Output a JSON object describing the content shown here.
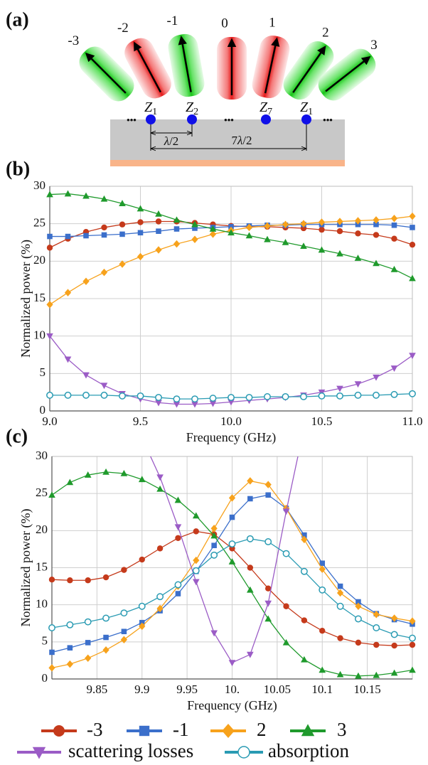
{
  "panel_labels": [
    "(a)",
    "(b)",
    "(c)"
  ],
  "diagram": {
    "beam_labels": [
      "-3",
      "-2",
      "-1",
      "0",
      "1",
      "2",
      "3"
    ],
    "element_labels": [
      {
        "symbol": "Z",
        "index": "1"
      },
      {
        "symbol": "Z",
        "index": "2"
      },
      {
        "symbol": "Z",
        "index": "7"
      },
      {
        "symbol": "Z",
        "index": "1"
      }
    ],
    "ellipsis": "•••",
    "spacing_labels": [
      {
        "prefix": "",
        "symbol": "λ",
        "text": "/2"
      },
      {
        "prefix": "7",
        "symbol": "λ",
        "text": "/2"
      }
    ]
  },
  "chart_data": [
    {
      "type": "line",
      "x_label": "Frequency (GHz)",
      "y_label": "Normalized power (%)",
      "x": [
        9.0,
        9.1,
        9.2,
        9.3,
        9.4,
        9.5,
        9.6,
        9.7,
        9.8,
        9.9,
        10.0,
        10.1,
        10.2,
        10.3,
        10.4,
        10.5,
        10.6,
        10.7,
        10.8,
        10.9,
        11.0
      ],
      "xlim": [
        9.0,
        11.0
      ],
      "xticks": [
        {
          "value": 9.0,
          "label": "9.0"
        },
        {
          "value": 9.5,
          "label": "9.5"
        },
        {
          "value": 10.0,
          "label": "10.0"
        },
        {
          "value": 10.5,
          "label": "10.5"
        },
        {
          "value": 11.0,
          "label": "11.0"
        }
      ],
      "ylim": [
        0,
        30
      ],
      "yticks": [
        0,
        5,
        10,
        15,
        20,
        25,
        30
      ],
      "grid": true,
      "series": [
        {
          "color": "#c53a1b",
          "marker": "circle",
          "values": [
            21.8,
            23.0,
            23.9,
            24.5,
            24.9,
            25.2,
            25.3,
            25.3,
            25.1,
            24.9,
            24.7,
            24.6,
            24.6,
            24.5,
            24.4,
            24.2,
            24.0,
            23.7,
            23.5,
            23.0,
            22.2
          ]
        },
        {
          "color": "#3b6fcb",
          "marker": "square",
          "values": [
            23.3,
            23.3,
            23.4,
            23.5,
            23.6,
            23.8,
            24.0,
            24.3,
            24.4,
            24.5,
            24.6,
            24.7,
            24.8,
            24.8,
            24.9,
            24.9,
            24.9,
            24.9,
            24.9,
            24.8,
            24.5
          ]
        },
        {
          "color": "#f7a21c",
          "marker": "diamond",
          "values": [
            14.2,
            15.8,
            17.3,
            18.5,
            19.6,
            20.6,
            21.5,
            22.3,
            22.9,
            23.6,
            24.1,
            24.5,
            24.7,
            24.9,
            25.0,
            25.2,
            25.3,
            25.4,
            25.5,
            25.7,
            26.0
          ]
        },
        {
          "color": "#1f9a2c",
          "marker": "triangle-up",
          "values": [
            28.9,
            29.0,
            28.7,
            28.3,
            27.7,
            27.0,
            26.3,
            25.5,
            24.9,
            24.3,
            23.8,
            23.4,
            22.9,
            22.5,
            22.0,
            21.5,
            21.0,
            20.4,
            19.7,
            18.9,
            17.7
          ]
        },
        {
          "color": "#9b5cc6",
          "marker": "triangle-down",
          "values": [
            10.0,
            6.9,
            4.8,
            3.4,
            2.3,
            1.6,
            1.1,
            0.9,
            0.9,
            1.0,
            1.2,
            1.4,
            1.6,
            1.8,
            2.1,
            2.5,
            3.0,
            3.6,
            4.5,
            5.7,
            7.4
          ]
        },
        {
          "color": "#2a9bb3",
          "marker": "circle-open",
          "values": [
            2.1,
            2.1,
            2.1,
            2.1,
            2.0,
            2.0,
            1.8,
            1.6,
            1.6,
            1.7,
            1.8,
            1.8,
            1.9,
            1.9,
            1.9,
            2.0,
            2.0,
            2.1,
            2.1,
            2.2,
            2.3
          ]
        }
      ]
    },
    {
      "type": "line",
      "x_label": "Frequency (GHz)",
      "y_label": "Normalized power (%)",
      "x": [
        9.8,
        9.82,
        9.84,
        9.86,
        9.88,
        9.9,
        9.92,
        9.94,
        9.96,
        9.98,
        10.0,
        10.02,
        10.04,
        10.06,
        10.08,
        10.1,
        10.12,
        10.14,
        10.16,
        10.18,
        10.2
      ],
      "xlim": [
        9.8,
        10.2
      ],
      "xticks": [
        9.85,
        9.9,
        9.95,
        {
          "value": 10,
          "label": "10."
        },
        10.05,
        10.1,
        10.15
      ],
      "ylim": [
        0,
        30
      ],
      "yticks": [
        0,
        5,
        10,
        15,
        20,
        25,
        30
      ],
      "grid": true,
      "legend": "bottom",
      "series": [
        {
          "name": "-3",
          "color": "#c53a1b",
          "marker": "circle",
          "values": [
            13.4,
            13.3,
            13.3,
            13.7,
            14.7,
            16.1,
            17.6,
            19.0,
            19.9,
            19.5,
            17.6,
            15.0,
            12.2,
            9.8,
            7.9,
            6.5,
            5.5,
            4.9,
            4.6,
            4.5,
            4.6
          ]
        },
        {
          "name": "-1",
          "color": "#3b6fcb",
          "marker": "square",
          "values": [
            3.6,
            4.2,
            4.9,
            5.6,
            6.4,
            7.6,
            9.2,
            11.5,
            14.5,
            18.0,
            21.8,
            24.3,
            24.8,
            23.0,
            19.4,
            15.6,
            12.5,
            10.4,
            8.8,
            8.0,
            7.4
          ]
        },
        {
          "name": "2",
          "color": "#f7a21c",
          "marker": "diamond",
          "values": [
            1.5,
            2.0,
            2.8,
            3.9,
            5.3,
            7.1,
            9.5,
            12.5,
            16.0,
            20.3,
            24.4,
            26.7,
            26.2,
            23.0,
            18.8,
            14.8,
            11.6,
            9.8,
            8.7,
            8.2,
            7.8
          ]
        },
        {
          "name": "3",
          "color": "#1f9a2c",
          "marker": "triangle-up",
          "values": [
            24.8,
            26.5,
            27.5,
            27.9,
            27.7,
            26.9,
            25.6,
            24.1,
            22.0,
            19.3,
            15.8,
            12.0,
            8.1,
            4.9,
            2.6,
            1.2,
            0.6,
            0.4,
            0.5,
            0.8,
            1.2
          ]
        },
        {
          "name": "scattering losses",
          "color": "#9b5cc6",
          "marker": "triangle-down",
          "values": [
            null,
            null,
            null,
            null,
            null,
            32.5,
            27.2,
            20.5,
            13.1,
            6.2,
            2.2,
            3.3,
            10.2,
            22.6,
            34.0,
            null,
            null,
            null,
            null,
            null,
            null
          ]
        },
        {
          "name": "absorption",
          "color": "#2a9bb3",
          "marker": "circle-open",
          "values": [
            6.9,
            7.3,
            7.7,
            8.2,
            8.9,
            9.8,
            11.1,
            12.7,
            14.6,
            16.7,
            18.2,
            18.9,
            18.5,
            16.9,
            14.5,
            12.0,
            9.8,
            8.1,
            6.9,
            6.0,
            5.5
          ]
        }
      ]
    }
  ]
}
